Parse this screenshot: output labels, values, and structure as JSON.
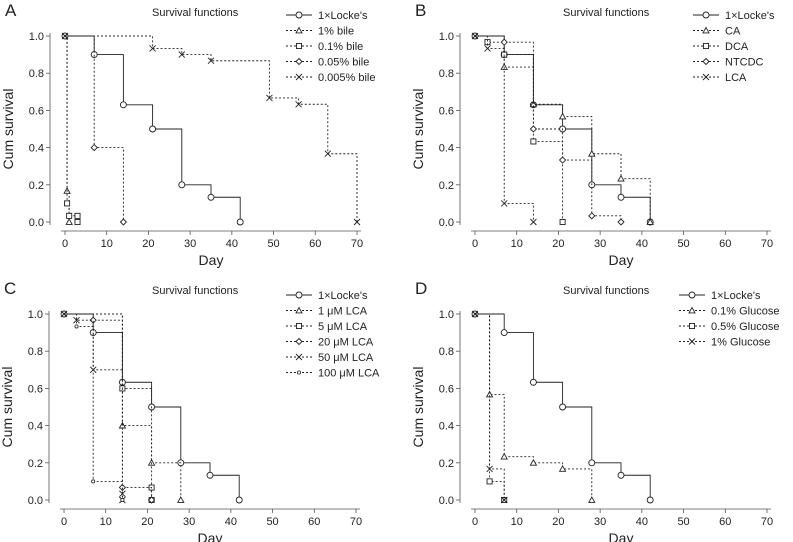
{
  "chart_data": [
    {
      "panel": "A",
      "type": "line",
      "title": "Survival functions",
      "xlabel": "Day",
      "ylabel": "Cum survival",
      "xlim": [
        0,
        70
      ],
      "ylim": [
        0,
        1
      ],
      "x_ticks": [
        "0",
        "10",
        "20",
        "30",
        "40",
        "50",
        "60",
        "70"
      ],
      "y_ticks": [
        "0.0",
        "0.2",
        "0.4",
        "0.6",
        "0.8",
        "1.0"
      ],
      "series": [
        {
          "name": "1×Locke's",
          "marker": "circle",
          "dash": "solid",
          "points": [
            [
              0,
              1.0
            ],
            [
              7,
              0.9
            ],
            [
              14,
              0.63
            ],
            [
              21,
              0.5
            ],
            [
              28,
              0.2
            ],
            [
              35,
              0.133
            ],
            [
              42,
              0.0
            ]
          ]
        },
        {
          "name": "1% bile",
          "marker": "triangle",
          "dash": "dotted",
          "points": [
            [
              0,
              1.0
            ],
            [
              0.5,
              0.167
            ],
            [
              1,
              0.0
            ]
          ]
        },
        {
          "name": "0.1% bile",
          "marker": "square",
          "dash": "dotted",
          "points": [
            [
              0,
              1.0
            ],
            [
              0.5,
              0.1
            ],
            [
              1,
              0.033
            ],
            [
              3,
              0.033
            ],
            [
              3,
              0.0
            ]
          ]
        },
        {
          "name": "0.05% bile",
          "marker": "diamond",
          "dash": "dotted",
          "points": [
            [
              0,
              1.0
            ],
            [
              7,
              0.4
            ],
            [
              14,
              0.0
            ]
          ]
        },
        {
          "name": "0.005% bile",
          "marker": "x",
          "dash": "dotted",
          "points": [
            [
              0,
              1.0
            ],
            [
              21,
              0.933
            ],
            [
              28,
              0.9
            ],
            [
              35,
              0.867
            ],
            [
              49,
              0.667
            ],
            [
              56,
              0.633
            ],
            [
              63,
              0.367
            ],
            [
              70,
              0.0
            ]
          ]
        }
      ]
    },
    {
      "panel": "B",
      "type": "line",
      "title": "Survival functions",
      "xlabel": "Day",
      "ylabel": "Cum survival",
      "xlim": [
        0,
        70
      ],
      "ylim": [
        0,
        1
      ],
      "x_ticks": [
        "0",
        "10",
        "20",
        "30",
        "40",
        "50",
        "60",
        "70"
      ],
      "y_ticks": [
        "0.0",
        "0.2",
        "0.4",
        "0.6",
        "0.8",
        "1.0"
      ],
      "series": [
        {
          "name": "1×Locke's",
          "marker": "circle",
          "dash": "solid",
          "points": [
            [
              0,
              1.0
            ],
            [
              7,
              0.9
            ],
            [
              14,
              0.63
            ],
            [
              21,
              0.5
            ],
            [
              28,
              0.2
            ],
            [
              35,
              0.133
            ],
            [
              42,
              0.0
            ]
          ]
        },
        {
          "name": "CA",
          "marker": "triangle",
          "dash": "dotted",
          "points": [
            [
              0,
              1.0
            ],
            [
              7,
              0.833
            ],
            [
              14,
              0.633
            ],
            [
              21,
              0.567
            ],
            [
              28,
              0.367
            ],
            [
              35,
              0.233
            ],
            [
              42,
              0.0
            ]
          ]
        },
        {
          "name": "DCA",
          "marker": "square",
          "dash": "dotted",
          "points": [
            [
              0,
              1.0
            ],
            [
              3,
              0.967
            ],
            [
              7,
              0.9
            ],
            [
              14,
              0.433
            ],
            [
              21,
              0.0
            ]
          ]
        },
        {
          "name": "NTCDC",
          "marker": "diamond",
          "dash": "dotted",
          "points": [
            [
              0,
              1.0
            ],
            [
              7,
              0.967
            ],
            [
              14,
              0.5
            ],
            [
              21,
              0.333
            ],
            [
              28,
              0.033
            ],
            [
              35,
              0.0
            ]
          ]
        },
        {
          "name": "LCA",
          "marker": "x",
          "dash": "dotted",
          "points": [
            [
              0,
              1.0
            ],
            [
              3,
              0.933
            ],
            [
              7,
              0.1
            ],
            [
              14,
              0.0
            ]
          ]
        }
      ]
    },
    {
      "panel": "C",
      "type": "line",
      "title": "Survival functions",
      "xlabel": "Day",
      "ylabel": "Cum survival",
      "xlim": [
        0,
        70
      ],
      "ylim": [
        0,
        1
      ],
      "x_ticks": [
        "0",
        "10",
        "20",
        "30",
        "40",
        "50",
        "60",
        "70"
      ],
      "y_ticks": [
        "0.0",
        "0.2",
        "0.4",
        "0.6",
        "0.8",
        "1.0"
      ],
      "series": [
        {
          "name": "1×Locke's",
          "marker": "circle",
          "dash": "solid",
          "points": [
            [
              0,
              1.0
            ],
            [
              7,
              0.9
            ],
            [
              14,
              0.633
            ],
            [
              21,
              0.5
            ],
            [
              28,
              0.2
            ],
            [
              35,
              0.133
            ],
            [
              42,
              0.0
            ]
          ]
        },
        {
          "name": "1 μM LCA",
          "marker": "triangle",
          "dash": "dotted",
          "points": [
            [
              0,
              1.0
            ],
            [
              14,
              0.4
            ],
            [
              21,
              0.2
            ],
            [
              28,
              0.0
            ]
          ]
        },
        {
          "name": "5 μM LCA",
          "marker": "square",
          "dash": "dotted",
          "points": [
            [
              0,
              1.0
            ],
            [
              14,
              0.6
            ],
            [
              21,
              0.067
            ],
            [
              21,
              0.0
            ]
          ]
        },
        {
          "name": "20 μM LCA",
          "marker": "diamond",
          "dash": "dotted",
          "points": [
            [
              0,
              1.0
            ],
            [
              7,
              0.967
            ],
            [
              14,
              0.067
            ],
            [
              21,
              0.0
            ]
          ]
        },
        {
          "name": "50 μM LCA",
          "marker": "x",
          "dash": "dotted",
          "points": [
            [
              0,
              1.0
            ],
            [
              3,
              0.967
            ],
            [
              7,
              0.7
            ],
            [
              14,
              0.033
            ],
            [
              14,
              0.0
            ]
          ]
        },
        {
          "name": "100 μM LCA",
          "marker": "dot",
          "dash": "dotted",
          "points": [
            [
              0,
              1.0
            ],
            [
              3,
              0.933
            ],
            [
              7,
              0.1
            ],
            [
              14,
              0.0
            ]
          ]
        }
      ]
    },
    {
      "panel": "D",
      "type": "line",
      "title": "Survival functions",
      "xlabel": "Day",
      "ylabel": "Cum survival",
      "xlim": [
        0,
        70
      ],
      "ylim": [
        0,
        1
      ],
      "x_ticks": [
        "0",
        "10",
        "20",
        "30",
        "40",
        "50",
        "60",
        "70"
      ],
      "y_ticks": [
        "0.0",
        "0.2",
        "0.4",
        "0.6",
        "0.8",
        "1.0"
      ],
      "series": [
        {
          "name": "1×Locke's",
          "marker": "circle",
          "dash": "solid",
          "points": [
            [
              0,
              1.0
            ],
            [
              7,
              0.9
            ],
            [
              14,
              0.633
            ],
            [
              21,
              0.5
            ],
            [
              28,
              0.2
            ],
            [
              35,
              0.133
            ],
            [
              42,
              0.0
            ]
          ]
        },
        {
          "name": "0.1% Glucose",
          "marker": "triangle",
          "dash": "dotted",
          "points": [
            [
              0,
              1.0
            ],
            [
              3.5,
              0.567
            ],
            [
              7,
              0.233
            ],
            [
              14,
              0.2
            ],
            [
              21,
              0.167
            ],
            [
              28,
              0.0
            ]
          ]
        },
        {
          "name": "0.5% Glucose",
          "marker": "square",
          "dash": "dotted",
          "points": [
            [
              0,
              1.0
            ],
            [
              3.5,
              0.1
            ],
            [
              7,
              0.0
            ]
          ]
        },
        {
          "name": "1% Glucose",
          "marker": "x",
          "dash": "dotted",
          "points": [
            [
              0,
              1.0
            ],
            [
              3.5,
              0.167
            ],
            [
              7,
              0.0
            ]
          ]
        }
      ]
    }
  ]
}
